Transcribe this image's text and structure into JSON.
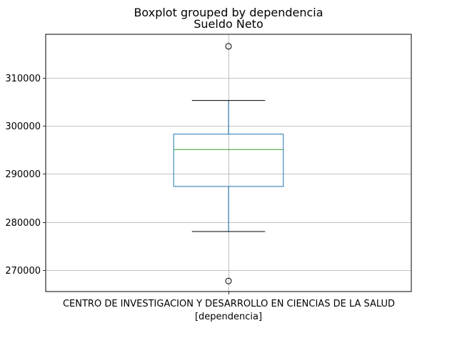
{
  "chart_data": {
    "type": "box",
    "suptitle": "Boxplot grouped by dependencia",
    "title": "Sueldo Neto",
    "xlabel": "[dependencia]",
    "ylabel": "",
    "categories": [
      "CENTRO DE INVESTIGACION Y DESARROLLO EN CIENCIAS DE LA SALUD"
    ],
    "boxes": [
      {
        "category": "CENTRO DE INVESTIGACION Y DESARROLLO EN CIENCIAS DE LA SALUD",
        "whisker_low": 278000,
        "q1": 287400,
        "median": 295100,
        "q3": 298300,
        "whisker_high": 305300,
        "outliers": [
          316600,
          267700
        ]
      }
    ],
    "yticks": [
      270000,
      280000,
      290000,
      300000,
      310000
    ],
    "ylim": [
      265500,
      319100
    ],
    "grid": true,
    "colors": {
      "box": "#1f77b4",
      "median": "#2ca02c",
      "grid": "#b0b0b0",
      "cap": "#000000"
    }
  }
}
